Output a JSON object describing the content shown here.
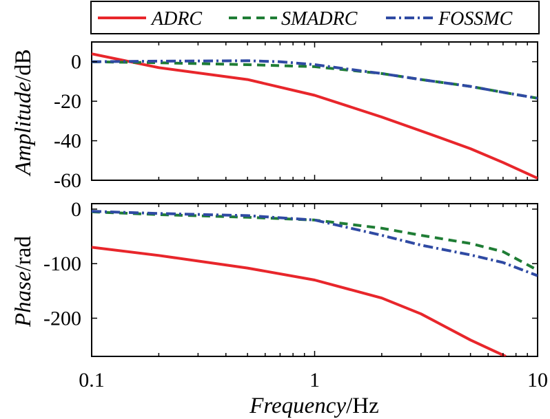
{
  "chart_data": {
    "type": "line",
    "x_scale": "log",
    "legend": {
      "position": "top",
      "entries": [
        {
          "name": "ADRC",
          "color": "#e8262b",
          "dash": "solid"
        },
        {
          "name": "SMADRC",
          "color": "#1f7d35",
          "dash": "dashed"
        },
        {
          "name": "FOSSMC",
          "color": "#2f4aa3",
          "dash": "dashdot"
        }
      ]
    },
    "x_ticks": [
      {
        "value": 0.1,
        "label": "0.1"
      },
      {
        "value": 1,
        "label": "1"
      },
      {
        "value": 10,
        "label": "10"
      }
    ],
    "xlabel": {
      "italic": "Frequency",
      "unit": "/Hz"
    },
    "xlim": [
      0.1,
      10
    ],
    "panels": [
      {
        "id": "amplitude",
        "ylabel": {
          "italic": "Amplitude",
          "unit": "/dB"
        },
        "ylim": [
          -60,
          10
        ],
        "y_ticks": [
          {
            "value": 0,
            "label": "0"
          },
          {
            "value": -20,
            "label": "-20"
          },
          {
            "value": -40,
            "label": "-40"
          },
          {
            "value": -60,
            "label": "-60"
          }
        ],
        "series": [
          {
            "name": "ADRC",
            "x": [
              0.1,
              0.2,
              0.5,
              1,
              2,
              3,
              5,
              7,
              10
            ],
            "y": [
              4,
              -3,
              -9,
              -17,
              -28,
              -35,
              -44,
              -51,
              -59
            ]
          },
          {
            "name": "SMADRC",
            "x": [
              0.1,
              0.2,
              0.5,
              1,
              2,
              3,
              5,
              7,
              10
            ],
            "y": [
              0,
              -0.5,
              -1.5,
              -2.5,
              -6,
              -9,
              -12.5,
              -15.5,
              -18.5
            ]
          },
          {
            "name": "FOSSMC",
            "x": [
              0.1,
              0.2,
              0.5,
              0.7,
              1,
              2,
              3,
              5,
              7,
              10
            ],
            "y": [
              0,
              0.3,
              0.5,
              0,
              -1.5,
              -6,
              -9,
              -12.5,
              -15.5,
              -18.5
            ]
          }
        ]
      },
      {
        "id": "phase",
        "ylabel": {
          "italic": "Phase",
          "unit": "/rad"
        },
        "ylim": [
          -270,
          10
        ],
        "y_ticks": [
          {
            "value": 0,
            "label": "0"
          },
          {
            "value": -100,
            "label": "-100"
          },
          {
            "value": -200,
            "label": "-200"
          }
        ],
        "series": [
          {
            "name": "ADRC",
            "x": [
              0.1,
              0.2,
              0.5,
              1,
              2,
              3,
              5,
              7.2
            ],
            "y": [
              -70,
              -85,
              -108,
              -130,
              -163,
              -192,
              -240,
              -270
            ]
          },
          {
            "name": "SMADRC",
            "x": [
              0.1,
              0.2,
              0.5,
              1,
              2,
              3,
              5,
              7,
              10
            ],
            "y": [
              -5,
              -10,
              -15,
              -20,
              -35,
              -48,
              -63,
              -78,
              -112
            ]
          },
          {
            "name": "FOSSMC",
            "x": [
              0.1,
              0.2,
              0.5,
              1,
              2,
              3,
              5,
              7,
              10
            ],
            "y": [
              -4,
              -8,
              -12,
              -20,
              -48,
              -66,
              -84,
              -98,
              -122
            ]
          }
        ]
      }
    ]
  }
}
